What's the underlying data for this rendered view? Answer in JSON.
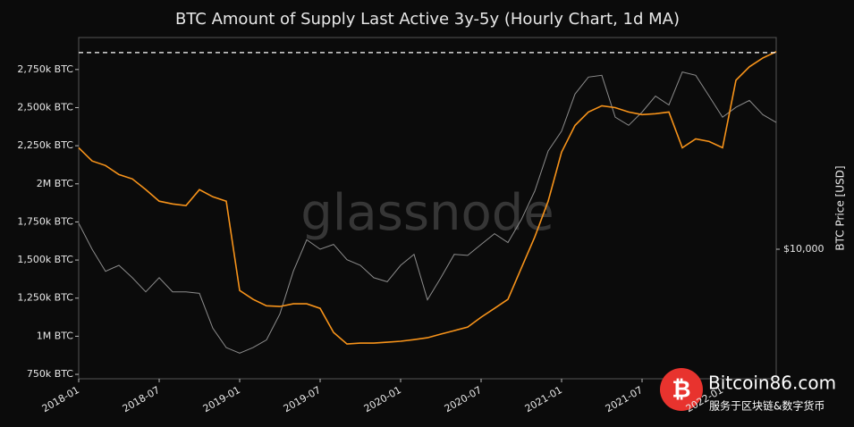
{
  "chart_data": {
    "type": "line",
    "title": "BTC Amount of Supply Last Active 3y-5y (Hourly Chart, 1d MA)",
    "watermark": "glassnode",
    "overlay_texts": [
      "Bitcoin86.com",
      "服务于区块链&数字货币"
    ],
    "y2_label": "BTC Price [USD]",
    "x": [
      "2018-01",
      "2018-02",
      "2018-03",
      "2018-04",
      "2018-05",
      "2018-06",
      "2018-07",
      "2018-08",
      "2018-09",
      "2018-10",
      "2018-11",
      "2018-12",
      "2019-01",
      "2019-02",
      "2019-03",
      "2019-04",
      "2019-05",
      "2019-06",
      "2019-07",
      "2019-08",
      "2019-09",
      "2019-10",
      "2019-11",
      "2019-12",
      "2020-01",
      "2020-02",
      "2020-03",
      "2020-04",
      "2020-05",
      "2020-06",
      "2020-07",
      "2020-08",
      "2020-09",
      "2020-10",
      "2020-11",
      "2020-12",
      "2021-01",
      "2021-02",
      "2021-03",
      "2021-04",
      "2021-05",
      "2021-06",
      "2021-07",
      "2021-08",
      "2021-09",
      "2021-10",
      "2021-11",
      "2021-12",
      "2022-01",
      "2022-02",
      "2022-03",
      "2022-04",
      "2022-05"
    ],
    "xticks": [
      "2018-01",
      "2018-07",
      "2019-01",
      "2019-07",
      "2020-01",
      "2020-07",
      "2021-01",
      "2021-07",
      "2022-01"
    ],
    "series": [
      {
        "name": "Supply Last Active 3y-5y",
        "color": "#f7931a",
        "axis": "y",
        "values": [
          2237000,
          2150000,
          2120000,
          2061000,
          2032000,
          1962000,
          1886000,
          1868000,
          1857000,
          1962000,
          1915000,
          1886000,
          1300000,
          1242000,
          1200000,
          1195000,
          1213000,
          1213000,
          1183000,
          1025000,
          949000,
          955000,
          955000,
          961000,
          967000,
          978000,
          990000,
          1014000,
          1037000,
          1060000,
          1125000,
          1183000,
          1242000,
          1447000,
          1651000,
          1886000,
          2208000,
          2383000,
          2471000,
          2512000,
          2500000,
          2471000,
          2454000,
          2460000,
          2471000,
          2237000,
          2295000,
          2278000,
          2237000,
          2680000,
          2768000,
          2826000,
          2867000
        ]
      },
      {
        "name": "BTC Price",
        "color": "#8c8c8c",
        "axis": "y2",
        "values": [
          13000,
          10000,
          8000,
          8500,
          7500,
          6500,
          7500,
          6500,
          6500,
          6400,
          4500,
          3700,
          3500,
          3700,
          4000,
          5200,
          8000,
          11000,
          10000,
          10500,
          9000,
          8500,
          7500,
          7200,
          8500,
          9500,
          6000,
          7500,
          9500,
          9400,
          10500,
          11700,
          10700,
          13500,
          18000,
          27000,
          33000,
          48000,
          57000,
          58000,
          38000,
          35000,
          40000,
          47000,
          43000,
          60000,
          58000,
          47000,
          38000,
          42000,
          45000,
          39000,
          36000
        ]
      }
    ],
    "reference_line": 2861000,
    "ylim": [
      721000,
      2960000
    ],
    "yticks": [
      {
        "value": 750000,
        "label": "750k BTC"
      },
      {
        "value": 1000000,
        "label": "1M BTC"
      },
      {
        "value": 1250000,
        "label": "1,250k BTC"
      },
      {
        "value": 1500000,
        "label": "1,500k BTC"
      },
      {
        "value": 1750000,
        "label": "1,750k BTC"
      },
      {
        "value": 2000000,
        "label": "2M BTC"
      },
      {
        "value": 2250000,
        "label": "2,250k BTC"
      },
      {
        "value": 2500000,
        "label": "2,500k BTC"
      },
      {
        "value": 2750000,
        "label": "2,750k BTC"
      }
    ],
    "y2lim": [
      2700,
      85000
    ],
    "y2ticks": [
      {
        "value": 10000,
        "label": "$10,000"
      }
    ],
    "y2_log": true,
    "grid": false
  }
}
